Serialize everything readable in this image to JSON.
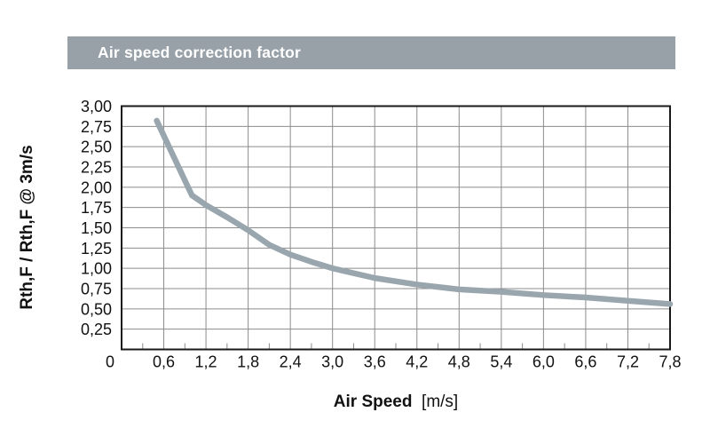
{
  "header": {
    "title": "Air speed correction factor"
  },
  "axes": {
    "y_label": "Rth,F / Rth,F @ 3m/s",
    "x_label_bold": "Air Speed",
    "x_label_unit": "[m/s]"
  },
  "colors": {
    "title_bar_bg": "#98A1A8",
    "title_text": "#FFFFFF",
    "curve": "#9AA6AE",
    "grid": "#8C8C8C",
    "plot_border": "#1A1A1A",
    "tick_text": "#111111"
  },
  "chart_data": {
    "type": "line",
    "title": "Air speed correction factor",
    "xlabel": "Air Speed [m/s]",
    "ylabel": "Rth,F / Rth,F @ 3m/s",
    "xlim": [
      0,
      7.8
    ],
    "ylim": [
      0,
      3
    ],
    "grid": true,
    "x_major_step": 0.6,
    "x_minor_step": 0.3,
    "y_major_step": 0.25,
    "decimal_separator": ",",
    "x_ticks": [
      {
        "v": 0,
        "label": "0"
      },
      {
        "v": 0.6,
        "label": "0,6"
      },
      {
        "v": 1.2,
        "label": "1,2"
      },
      {
        "v": 1.8,
        "label": "1,8"
      },
      {
        "v": 2.4,
        "label": "2,4"
      },
      {
        "v": 3.0,
        "label": "3,0"
      },
      {
        "v": 3.6,
        "label": "3,6"
      },
      {
        "v": 4.2,
        "label": "4,2"
      },
      {
        "v": 4.8,
        "label": "4,8"
      },
      {
        "v": 5.4,
        "label": "5,4"
      },
      {
        "v": 6.0,
        "label": "6,0"
      },
      {
        "v": 6.6,
        "label": "6,6"
      },
      {
        "v": 7.2,
        "label": "7,2"
      },
      {
        "v": 7.8,
        "label": "7,8"
      }
    ],
    "y_ticks": [
      {
        "v": 3.0,
        "label": "3,00"
      },
      {
        "v": 2.75,
        "label": "2,75"
      },
      {
        "v": 2.5,
        "label": "2,50"
      },
      {
        "v": 2.25,
        "label": "2,25"
      },
      {
        "v": 2.0,
        "label": "2,00"
      },
      {
        "v": 1.75,
        "label": "1,75"
      },
      {
        "v": 1.5,
        "label": "1,50"
      },
      {
        "v": 1.25,
        "label": "1,25"
      },
      {
        "v": 1.0,
        "label": "1,00"
      },
      {
        "v": 0.75,
        "label": "0,75"
      },
      {
        "v": 0.5,
        "label": "0,50"
      },
      {
        "v": 0.25,
        "label": "0,25"
      }
    ],
    "series": [
      {
        "name": "Rth,F / Rth,F @ 3m/s correction factor",
        "points": [
          [
            0.5,
            2.82
          ],
          [
            1.0,
            1.9
          ],
          [
            1.2,
            1.78
          ],
          [
            1.5,
            1.63
          ],
          [
            1.8,
            1.47
          ],
          [
            2.1,
            1.29
          ],
          [
            2.4,
            1.17
          ],
          [
            2.7,
            1.08
          ],
          [
            3.0,
            1.0
          ],
          [
            3.6,
            0.88
          ],
          [
            4.2,
            0.8
          ],
          [
            4.8,
            0.74
          ],
          [
            5.4,
            0.71
          ],
          [
            6.0,
            0.67
          ],
          [
            6.6,
            0.64
          ],
          [
            7.2,
            0.6
          ],
          [
            7.8,
            0.56
          ]
        ]
      }
    ]
  }
}
